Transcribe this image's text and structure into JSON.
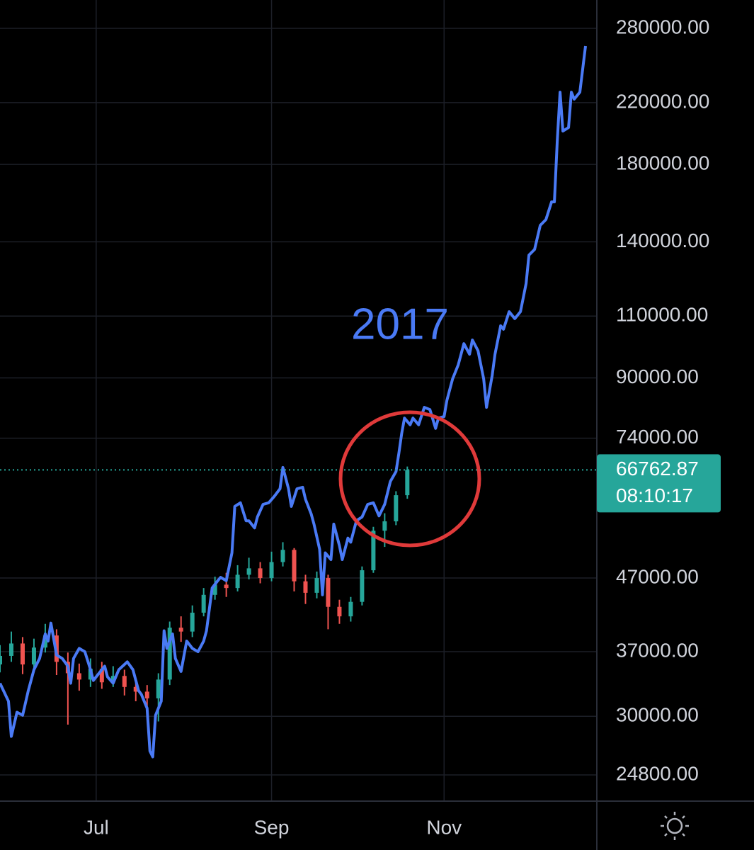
{
  "chart_data": {
    "type": "candlestick",
    "annotation": "2017",
    "log_scale": true,
    "grid": true,
    "xlim": [
      -34,
      177
    ],
    "ylim": [
      22830,
      307000
    ],
    "xticks": [
      {
        "value": 0,
        "label": "Jul"
      },
      {
        "value": 62,
        "label": "Sep"
      },
      {
        "value": 123,
        "label": "Nov"
      }
    ],
    "yticks": [
      {
        "value": 280000,
        "label": "280000.00"
      },
      {
        "value": 220000,
        "label": "220000.00"
      },
      {
        "value": 180000,
        "label": "180000.00"
      },
      {
        "value": 140000,
        "label": "140000.00"
      },
      {
        "value": 110000,
        "label": "110000.00"
      },
      {
        "value": 90000,
        "label": "90000.00"
      },
      {
        "value": 74000,
        "label": "74000.00"
      },
      {
        "value": 47000,
        "label": "47000.00"
      },
      {
        "value": 37000,
        "label": "37000.00"
      },
      {
        "value": 30000,
        "label": "30000.00"
      },
      {
        "value": 24800,
        "label": "24800.00"
      }
    ],
    "countdown": "08:10:17",
    "candles": {
      "up_color": "#26a69a",
      "down_color": "#ef5350",
      "x": [
        -34,
        -30,
        -26,
        -22,
        -18,
        -14,
        -10,
        -6,
        -2,
        2,
        6,
        10,
        14,
        18,
        22,
        26,
        30,
        34,
        38,
        42,
        46,
        50,
        54,
        58,
        62,
        66,
        70,
        74,
        78,
        82,
        86,
        90,
        94,
        98,
        102,
        106,
        110
      ],
      "open": [
        35500,
        36500,
        38000,
        35500,
        37500,
        39000,
        35800,
        34500,
        33800,
        35000,
        33500,
        34200,
        33000,
        32500,
        31800,
        33800,
        40000,
        39500,
        42000,
        44500,
        46000,
        45500,
        47500,
        48500,
        47000,
        49500,
        51500,
        46500,
        44800,
        47000,
        42800,
        41500,
        43500,
        48200,
        54800,
        56500,
        61500
      ],
      "high": [
        37800,
        39500,
        38800,
        38600,
        40500,
        39800,
        36900,
        35600,
        36200,
        35800,
        35300,
        34900,
        33800,
        33200,
        34500,
        40800,
        41500,
        43000,
        45500,
        47200,
        47800,
        49000,
        50200,
        49500,
        51200,
        52800,
        51800,
        47500,
        48000,
        47500,
        43800,
        44200,
        48800,
        55500,
        58000,
        62300,
        67500
      ],
      "low": [
        34600,
        35800,
        34400,
        34800,
        36900,
        34300,
        29200,
        32600,
        33000,
        32800,
        33000,
        32100,
        31500,
        30200,
        29500,
        33200,
        38200,
        38800,
        41500,
        43800,
        44200,
        45000,
        46800,
        46200,
        46500,
        48800,
        45000,
        43200,
        44000,
        39800,
        40500,
        40800,
        43000,
        47800,
        52000,
        55800,
        60800
      ],
      "close": [
        36500,
        38000,
        35500,
        37500,
        39000,
        35800,
        34500,
        33800,
        35000,
        33500,
        34200,
        33000,
        32500,
        31800,
        33800,
        40000,
        39500,
        42000,
        44500,
        46000,
        45500,
        47500,
        48500,
        47000,
        49500,
        51500,
        46500,
        44800,
        47000,
        42800,
        41500,
        43500,
        48200,
        54800,
        56500,
        61500,
        66762.87
      ]
    },
    "line": {
      "color": "#4a7af5",
      "x": [
        -34,
        -31,
        -30,
        -28,
        -26,
        -24,
        -22,
        -20,
        -18,
        -17,
        -16,
        -14,
        -12,
        -10,
        -9,
        -8,
        -6,
        -4,
        -2,
        -1,
        1,
        3,
        4,
        6,
        8,
        11,
        13,
        15,
        16,
        18,
        19,
        20,
        21,
        23,
        24,
        25,
        27,
        28,
        30,
        32,
        34,
        36,
        38,
        39,
        41,
        43,
        44,
        46,
        48,
        49,
        51,
        53,
        54,
        56,
        57,
        59,
        61,
        63,
        65,
        66,
        68,
        69,
        71,
        73,
        74,
        76,
        77,
        79,
        80,
        81,
        83,
        84,
        86,
        87,
        89,
        90,
        92,
        94,
        96,
        98,
        100,
        102,
        104,
        106,
        107,
        108,
        109,
        111,
        112,
        114,
        116,
        118,
        120,
        121,
        123,
        124,
        126,
        128,
        129,
        130,
        132,
        133,
        135,
        137,
        138,
        140,
        141,
        143,
        144,
        146,
        148,
        150,
        152,
        153,
        155,
        157,
        159,
        161,
        162,
        163,
        164,
        165,
        167,
        168,
        169,
        171,
        173
      ],
      "values": [
        33400,
        31500,
        28100,
        30400,
        30100,
        32600,
        34900,
        36200,
        39200,
        38300,
        40600,
        36600,
        36200,
        35300,
        33400,
        36200,
        37400,
        37000,
        34900,
        33700,
        34500,
        35300,
        34100,
        33400,
        34900,
        35800,
        34900,
        32600,
        32200,
        30800,
        26800,
        26300,
        30100,
        31500,
        39600,
        37400,
        39200,
        36200,
        34700,
        38300,
        37400,
        37000,
        38300,
        39600,
        45500,
        46600,
        47100,
        46600,
        51000,
        59300,
        60000,
        56600,
        56600,
        55300,
        57300,
        59700,
        60000,
        61300,
        62800,
        67300,
        62800,
        59300,
        62800,
        63100,
        60700,
        57900,
        56000,
        51600,
        44500,
        51000,
        49900,
        56000,
        52200,
        49900,
        53500,
        52800,
        56600,
        57300,
        59700,
        60000,
        57500,
        59700,
        64300,
        66400,
        70400,
        75100,
        79000,
        77300,
        79000,
        77300,
        81800,
        81200,
        76400,
        79000,
        79400,
        83700,
        89700,
        93900,
        97200,
        100600,
        97200,
        101800,
        98300,
        89700,
        81800,
        90700,
        97200,
        106600,
        105400,
        111600,
        109100,
        111600,
        122300,
        134100,
        136600,
        147700,
        150500,
        159400,
        159400,
        193800,
        227600,
        200600,
        202900,
        227600,
        222500,
        227600,
        264400
      ]
    }
  }
}
